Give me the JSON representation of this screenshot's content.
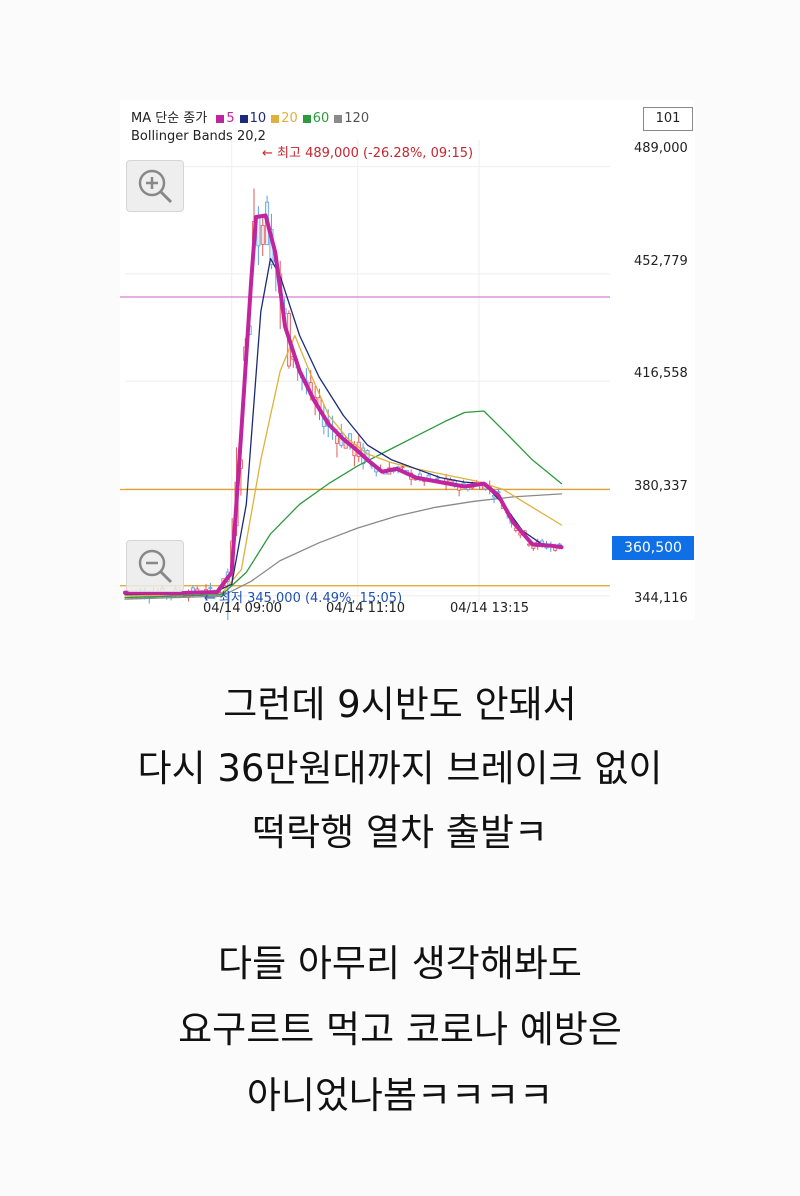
{
  "legend": {
    "ma_title": "MA 단순 종가",
    "ma_items": [
      {
        "label": "5",
        "color": "#c0259f"
      },
      {
        "label": "10",
        "color": "#1b2a7a"
      },
      {
        "label": "20",
        "color": "#e0b13a"
      },
      {
        "label": "60",
        "color": "#2d9a3d"
      },
      {
        "label": "120",
        "color": "#8a8a8a"
      }
    ],
    "bb_title": "Bollinger Bands 20,2"
  },
  "period_value": "101",
  "price_axis": [
    "489,000",
    "452,779",
    "416,558",
    "380,337",
    "344,116"
  ],
  "current_price": "360,500",
  "time_axis": [
    "04/14 09:00",
    "04/14 11:10",
    "04/14 13:15"
  ],
  "annotations": {
    "high": "← 최고 489,000 (-26.28%, 09:15)",
    "low": "← 최저 345,000 (4.49%, 15:05)"
  },
  "icons": {
    "zoom_in": "zoom-in-icon",
    "zoom_out": "zoom-out-icon"
  },
  "chart_data": {
    "type": "line",
    "ylim": [
      341000,
      498000
    ],
    "x_range": [
      0,
      100
    ],
    "y_ticks": [
      489000,
      452779,
      416558,
      380337,
      344116
    ],
    "x_ticks": [
      {
        "x": 22,
        "label": "04/14 09:00"
      },
      {
        "x": 48,
        "label": "04/14 11:10"
      },
      {
        "x": 73,
        "label": "04/14 13:15"
      }
    ],
    "reference_lines": [
      {
        "y": 445000,
        "color": "#d67fd1"
      },
      {
        "y": 380000,
        "color": "#e0a12a"
      },
      {
        "y": 347500,
        "color": "#e0a12a"
      }
    ],
    "series": [
      {
        "name": "5",
        "color": "#c0259f",
        "width": 4,
        "points": [
          [
            0,
            345200
          ],
          [
            10,
            345000
          ],
          [
            19,
            345400
          ],
          [
            22,
            352000
          ],
          [
            24,
            400000
          ],
          [
            26,
            450000
          ],
          [
            27,
            472000
          ],
          [
            29,
            472500
          ],
          [
            31,
            460000
          ],
          [
            33,
            435000
          ],
          [
            36,
            420000
          ],
          [
            39,
            410000
          ],
          [
            42,
            402000
          ],
          [
            45,
            397000
          ],
          [
            48,
            393000
          ],
          [
            50,
            390000
          ],
          [
            53,
            386000
          ],
          [
            56,
            387000
          ],
          [
            60,
            384000
          ],
          [
            65,
            382500
          ],
          [
            70,
            381000
          ],
          [
            74,
            382000
          ],
          [
            77,
            378000
          ],
          [
            80,
            369000
          ],
          [
            84,
            361500
          ],
          [
            88,
            361000
          ],
          [
            90,
            360500
          ]
        ]
      },
      {
        "name": "10",
        "color": "#1b2a7a",
        "width": 1.3,
        "points": [
          [
            0,
            344500
          ],
          [
            18,
            345000
          ],
          [
            22,
            348000
          ],
          [
            25,
            375000
          ],
          [
            28,
            440000
          ],
          [
            30,
            458000
          ],
          [
            32,
            452000
          ],
          [
            36,
            432000
          ],
          [
            40,
            418000
          ],
          [
            45,
            405000
          ],
          [
            50,
            395000
          ],
          [
            55,
            390000
          ],
          [
            60,
            387000
          ],
          [
            65,
            384000
          ],
          [
            70,
            382500
          ],
          [
            74,
            382000
          ],
          [
            78,
            375000
          ],
          [
            82,
            366000
          ],
          [
            86,
            361500
          ],
          [
            90,
            361000
          ]
        ]
      },
      {
        "name": "20",
        "color": "#e0b13a",
        "width": 1.3,
        "points": [
          [
            0,
            344000
          ],
          [
            20,
            345000
          ],
          [
            24,
            353000
          ],
          [
            28,
            390000
          ],
          [
            32,
            420000
          ],
          [
            35,
            432000
          ],
          [
            38,
            420000
          ],
          [
            42,
            405000
          ],
          [
            46,
            397000
          ],
          [
            50,
            392000
          ],
          [
            55,
            389000
          ],
          [
            60,
            387000
          ],
          [
            66,
            385000
          ],
          [
            72,
            383000
          ],
          [
            78,
            380000
          ],
          [
            84,
            374000
          ],
          [
            90,
            368000
          ]
        ]
      },
      {
        "name": "60",
        "color": "#2d9a3d",
        "width": 1.3,
        "points": [
          [
            0,
            343500
          ],
          [
            20,
            344500
          ],
          [
            25,
            352000
          ],
          [
            30,
            365000
          ],
          [
            36,
            375000
          ],
          [
            42,
            382000
          ],
          [
            48,
            388000
          ],
          [
            54,
            393000
          ],
          [
            60,
            398000
          ],
          [
            66,
            403000
          ],
          [
            70,
            406000
          ],
          [
            74,
            406500
          ],
          [
            78,
            400000
          ],
          [
            84,
            390000
          ],
          [
            90,
            382000
          ]
        ]
      },
      {
        "name": "120",
        "color": "#8a8a8a",
        "width": 1.3,
        "points": [
          [
            0,
            343000
          ],
          [
            20,
            344000
          ],
          [
            26,
            349000
          ],
          [
            32,
            356000
          ],
          [
            40,
            362000
          ],
          [
            48,
            367000
          ],
          [
            56,
            371000
          ],
          [
            64,
            374000
          ],
          [
            72,
            376000
          ],
          [
            80,
            377500
          ],
          [
            90,
            378500
          ]
        ]
      }
    ]
  },
  "caption": {
    "block1": [
      "그런데 9시반도 안돼서",
      "다시 36만원대까지 브레이크 없이",
      "떡락행 열차 출발ㅋ"
    ],
    "block2": [
      "다들 아무리 생각해봐도",
      "요구르트 먹고 코로나 예방은",
      "아니었나봄ㅋㅋㅋㅋ"
    ]
  }
}
